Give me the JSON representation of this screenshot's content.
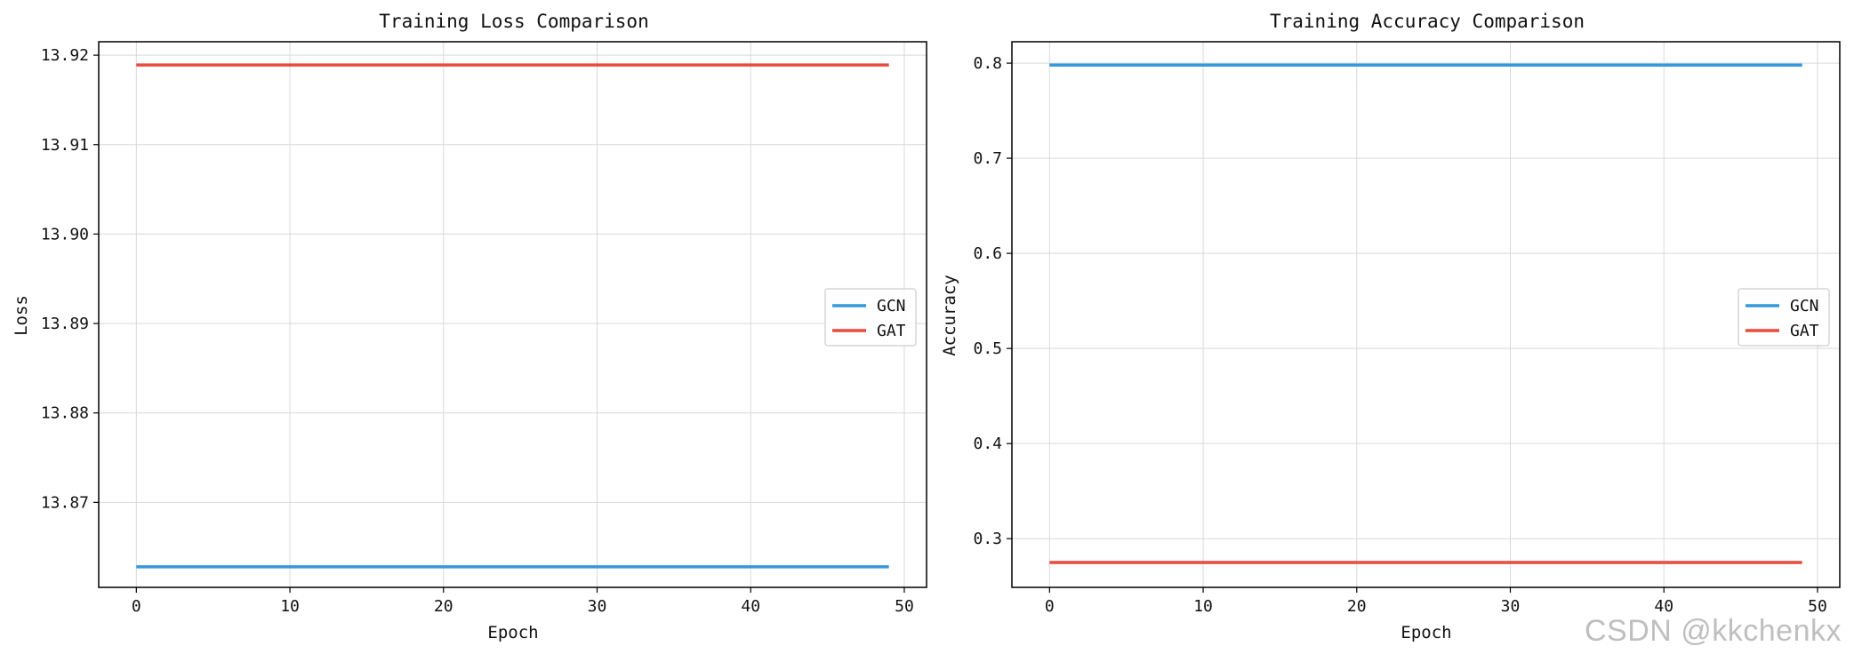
{
  "colors": {
    "GCN": "#3498db",
    "GAT": "#e74c3c"
  },
  "watermark": "CSDN @kkchenkx",
  "chart_data": [
    {
      "type": "line",
      "title": "Training Loss Comparison",
      "xlabel": "Epoch",
      "ylabel": "Loss",
      "xlim": [
        -2.45,
        51.45
      ],
      "ylim": [
        13.8605,
        13.9215
      ],
      "xticks": [
        0,
        10,
        20,
        30,
        40,
        50
      ],
      "yticks": [
        13.87,
        13.88,
        13.89,
        13.9,
        13.91,
        13.92
      ],
      "ytick_labels": [
        "13.87",
        "13.88",
        "13.89",
        "13.90",
        "13.91",
        "13.92"
      ],
      "grid": true,
      "legend": "center-right",
      "x": {
        "start": 0,
        "end": 49
      },
      "series": [
        {
          "name": "GCN",
          "values": [
            13.8628,
            13.8628
          ],
          "x": [
            0,
            49
          ],
          "color": "#3498db"
        },
        {
          "name": "GAT",
          "values": [
            13.9189,
            13.9189
          ],
          "x": [
            0,
            49
          ],
          "color": "#e74c3c"
        }
      ]
    },
    {
      "type": "line",
      "title": "Training Accuracy Comparison",
      "xlabel": "Epoch",
      "ylabel": "Accuracy",
      "xlim": [
        -2.45,
        51.45
      ],
      "ylim": [
        0.2488,
        0.8225
      ],
      "xticks": [
        0,
        10,
        20,
        30,
        40,
        50
      ],
      "yticks": [
        0.3,
        0.4,
        0.5,
        0.6,
        0.7,
        0.8
      ],
      "ytick_labels": [
        "0.3",
        "0.4",
        "0.5",
        "0.6",
        "0.7",
        "0.8"
      ],
      "grid": true,
      "legend": "center-right",
      "series": [
        {
          "name": "GCN",
          "values": [
            0.798,
            0.798
          ],
          "x": [
            0,
            49
          ],
          "color": "#3498db"
        },
        {
          "name": "GAT",
          "values": [
            0.275,
            0.275
          ],
          "x": [
            0,
            49
          ],
          "color": "#e74c3c"
        }
      ]
    }
  ]
}
